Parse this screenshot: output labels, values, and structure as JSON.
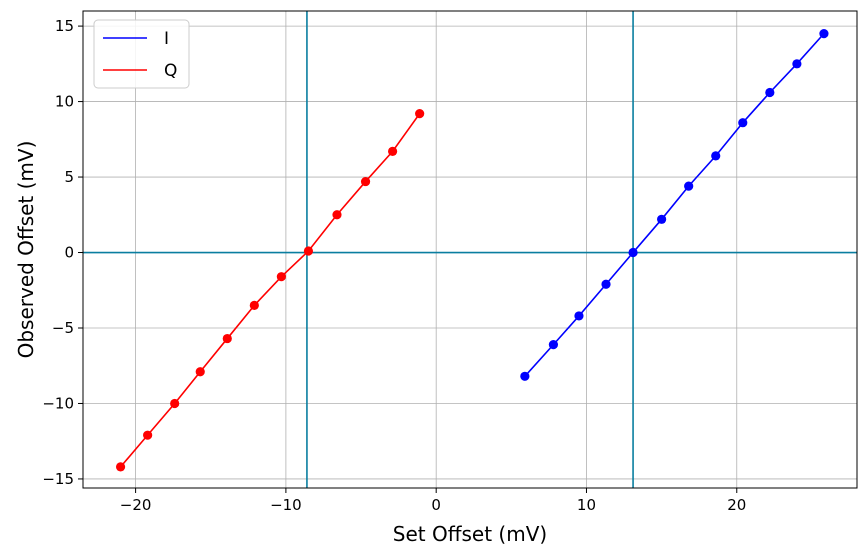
{
  "chart_data": {
    "type": "line",
    "title": "",
    "xlabel": "Set Offset (mV)",
    "ylabel": "Observed Offset (mV)",
    "xlim": [
      -23.5,
      28
    ],
    "ylim": [
      -15.6,
      16
    ],
    "xticks": [
      -20,
      -10,
      0,
      10,
      20
    ],
    "yticks": [
      -15,
      -10,
      -5,
      0,
      5,
      10,
      15
    ],
    "xtick_labels": [
      "−20",
      "−10",
      "0",
      "10",
      "20"
    ],
    "ytick_labels": [
      "−15",
      "−10",
      "−5",
      "0",
      "5",
      "10",
      "15"
    ],
    "grid": true,
    "legend_position": "top-left",
    "reference_lines": {
      "vertical": [
        -8.6,
        13.1
      ],
      "horizontal": [
        0
      ],
      "color": "#0a7ea0"
    },
    "series": [
      {
        "name": "I",
        "color": "#0000ff",
        "x": [
          5.9,
          7.8,
          9.5,
          11.3,
          13.1,
          15.0,
          16.8,
          18.6,
          20.4,
          22.2,
          24.0,
          25.8
        ],
        "y": [
          -8.2,
          -6.1,
          -4.2,
          -2.1,
          0.0,
          2.2,
          4.4,
          6.4,
          8.6,
          10.6,
          12.5,
          14.5
        ]
      },
      {
        "name": "Q",
        "color": "#ff0000",
        "x": [
          -21.0,
          -19.2,
          -17.4,
          -15.7,
          -13.9,
          -12.1,
          -10.3,
          -8.5,
          -6.6,
          -4.7,
          -2.9,
          -1.1
        ],
        "y": [
          -14.2,
          -12.1,
          -10.0,
          -7.9,
          -5.7,
          -3.5,
          -1.6,
          0.1,
          2.5,
          4.7,
          6.7,
          9.2
        ]
      }
    ]
  }
}
